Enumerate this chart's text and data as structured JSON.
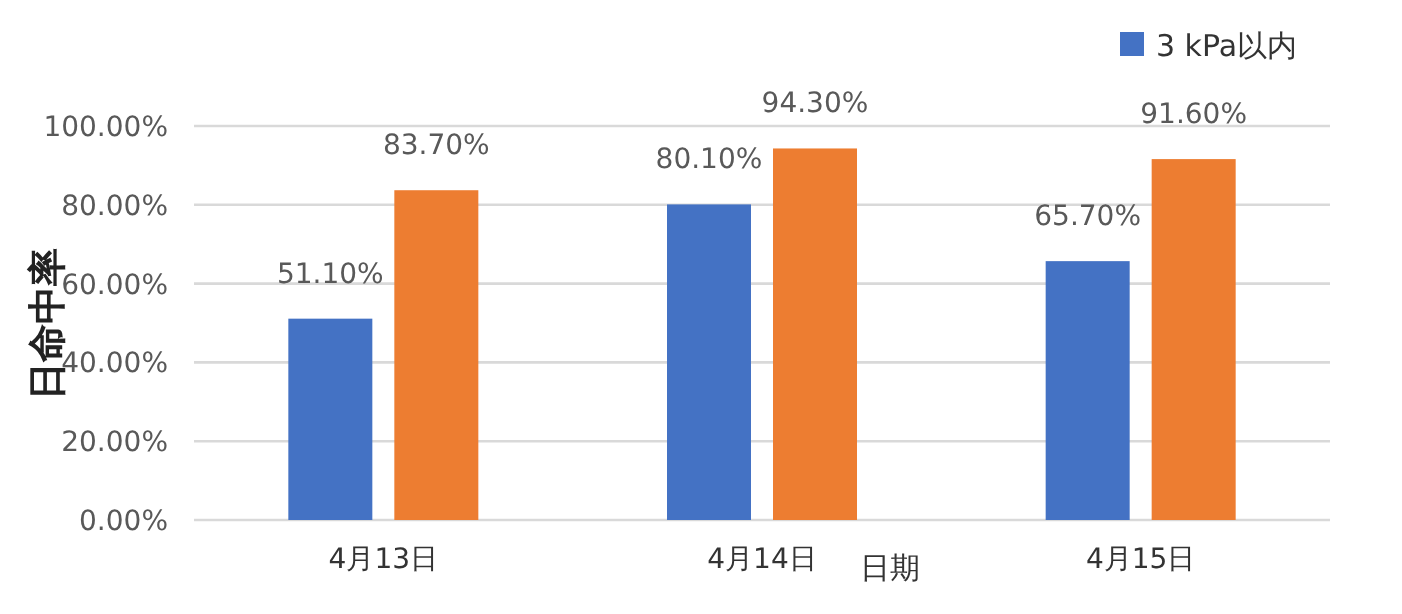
{
  "chart_data": {
    "type": "bar",
    "ylabel": "日命中率",
    "xlabel": "日期",
    "categories": [
      "4月13日",
      "4月14日",
      "4月15日"
    ],
    "series": [
      {
        "name": "3 kPa以内",
        "color": "#4472c4",
        "values": [
          51.1,
          80.1,
          65.7
        ],
        "value_labels": [
          "51.10%",
          "80.10%",
          "65.70%"
        ]
      },
      {
        "color": "#ed7d31",
        "values": [
          83.7,
          94.3,
          91.6
        ],
        "value_labels": [
          "83.70%",
          "94.30%",
          "91.60%"
        ]
      }
    ],
    "ylim": [
      0,
      100
    ],
    "yticks": [
      {
        "value": 0,
        "label": "0.00%"
      },
      {
        "value": 20,
        "label": "20.00%"
      },
      {
        "value": 40,
        "label": "40.00%"
      },
      {
        "value": 60,
        "label": "60.00%"
      },
      {
        "value": 80,
        "label": "80.00%"
      },
      {
        "value": 100,
        "label": "100.00%"
      }
    ],
    "grid": "y",
    "legend": "top right"
  }
}
